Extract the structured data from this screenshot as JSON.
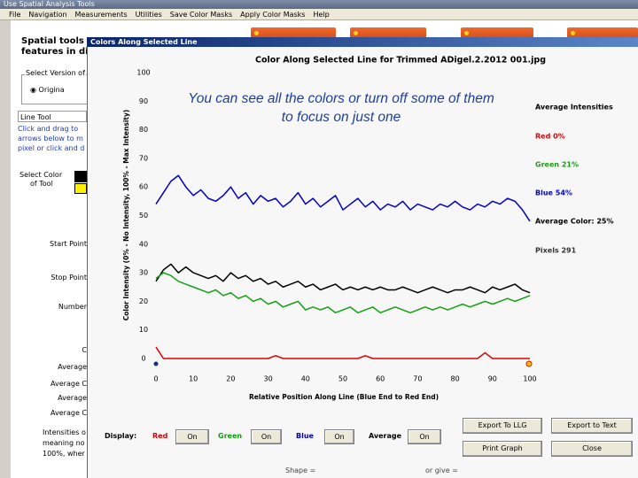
{
  "window": {
    "title": "Use Spatial Analysis Tools",
    "menu": [
      "File",
      "Navigation",
      "Measurements",
      "Utilities",
      "Save Color Masks",
      "Apply Color Masks",
      "Help"
    ]
  },
  "left_panel": {
    "heading": [
      "Spatial tools m",
      "features in dig"
    ],
    "version_box": "Select Version of",
    "radio": "Origina",
    "line_tool": "Line Tool",
    "instructions": [
      "Click and drag to",
      "arrows below to m",
      "pixel or click and d"
    ],
    "select_color": [
      "Select Color",
      "of Tool"
    ],
    "labels": [
      "Start Point",
      "Stop Point",
      "Number",
      "C",
      "Average",
      "Average C",
      "Average",
      "Average C"
    ],
    "notes": [
      "Intensities o",
      "meaning no",
      "100%, wher"
    ],
    "footer": [
      "Shape =",
      "or give ="
    ]
  },
  "dialog": {
    "title": "Colors Along Selected Line",
    "display_label": "Display:",
    "toggles": [
      {
        "label": "Red",
        "button": "On"
      },
      {
        "label": "Green",
        "button": "On"
      },
      {
        "label": "Blue",
        "button": "On"
      },
      {
        "label": "Average",
        "button": "On"
      }
    ],
    "buttons": [
      "Export To LLG",
      "Export to Text",
      "Print Graph",
      "Close"
    ]
  },
  "chart_data": {
    "type": "line",
    "title": "Color Along Selected Line for Trimmed ADigel.2.2012 001.jpg",
    "annotation": [
      "You can see all the colors or turn off some of them",
      "to focus on just one"
    ],
    "x_label": "Relative Position Along Line (Blue End to Red End)",
    "y_label": "Color Intensity (0% - No Intensity, 100% - Max Intensity)",
    "legend_title": "Average Intensities",
    "pixels_label": "Pixels 291",
    "xlim": [
      0,
      100
    ],
    "ylim": [
      0,
      100
    ],
    "xticks": [
      0,
      10,
      20,
      30,
      40,
      50,
      60,
      70,
      80,
      90,
      100
    ],
    "yticks": [
      0,
      10,
      20,
      30,
      40,
      50,
      60,
      70,
      80,
      90,
      100
    ],
    "x": [
      0,
      2,
      4,
      6,
      8,
      10,
      12,
      14,
      16,
      18,
      20,
      22,
      24,
      26,
      28,
      30,
      32,
      34,
      36,
      38,
      40,
      42,
      44,
      46,
      48,
      50,
      52,
      54,
      56,
      58,
      60,
      62,
      64,
      66,
      68,
      70,
      72,
      74,
      76,
      78,
      80,
      82,
      84,
      86,
      88,
      90,
      92,
      94,
      96,
      98,
      100
    ],
    "series": [
      {
        "name": "Red 0%",
        "color": "#e00000",
        "values": [
          4,
          0,
          0,
          0,
          0,
          0,
          0,
          0,
          0,
          0,
          0,
          0,
          0,
          0,
          0,
          0,
          1,
          0,
          0,
          0,
          0,
          0,
          0,
          0,
          0,
          0,
          0,
          0,
          1,
          0,
          0,
          0,
          0,
          0,
          0,
          0,
          0,
          0,
          0,
          0,
          0,
          0,
          0,
          0,
          2,
          0,
          0,
          0,
          0,
          0,
          0
        ]
      },
      {
        "name": "Green 21%",
        "color": "#14a014",
        "values": [
          28,
          30,
          29,
          27,
          26,
          25,
          24,
          23,
          24,
          22,
          23,
          21,
          22,
          20,
          21,
          19,
          20,
          18,
          19,
          20,
          17,
          18,
          17,
          18,
          16,
          17,
          18,
          16,
          17,
          18,
          16,
          17,
          18,
          17,
          16,
          17,
          18,
          17,
          18,
          17,
          18,
          19,
          18,
          19,
          20,
          19,
          20,
          21,
          20,
          21,
          22
        ]
      },
      {
        "name": "Blue 54%",
        "color": "#0000c8",
        "values": [
          54,
          58,
          62,
          64,
          60,
          57,
          59,
          56,
          55,
          57,
          60,
          56,
          58,
          54,
          57,
          55,
          56,
          53,
          55,
          58,
          54,
          56,
          53,
          55,
          57,
          52,
          54,
          56,
          53,
          55,
          52,
          54,
          53,
          55,
          52,
          54,
          53,
          52,
          54,
          53,
          55,
          53,
          52,
          54,
          53,
          55,
          54,
          56,
          55,
          52,
          48
        ]
      },
      {
        "name": "Average Color: 25%",
        "color": "#000000",
        "values": [
          27,
          31,
          33,
          30,
          32,
          30,
          29,
          28,
          29,
          27,
          30,
          28,
          29,
          27,
          28,
          26,
          27,
          25,
          26,
          27,
          25,
          26,
          24,
          25,
          26,
          24,
          25,
          24,
          25,
          24,
          25,
          24,
          24,
          25,
          24,
          23,
          24,
          25,
          24,
          23,
          24,
          24,
          25,
          24,
          23,
          25,
          24,
          25,
          26,
          24,
          23
        ]
      }
    ]
  }
}
